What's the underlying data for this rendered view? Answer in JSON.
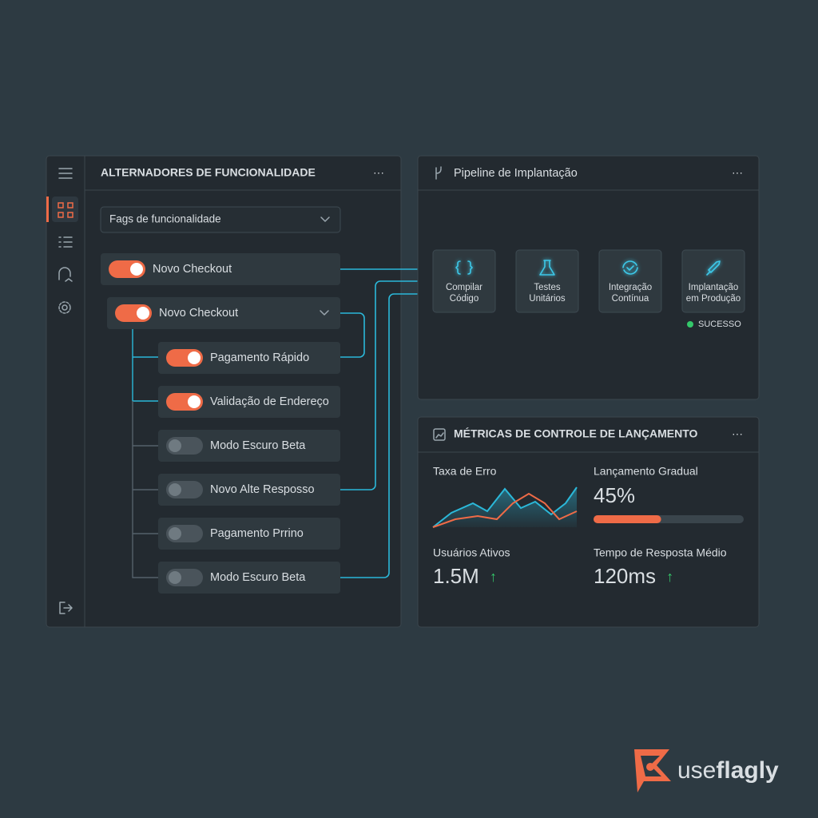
{
  "toggles": {
    "title": "ALTERNADORES DE FUNCIONALIDADE",
    "dropdown": "Fags de funcionalidade",
    "items": [
      {
        "label": "Novo Checkout",
        "on": true
      }
    ],
    "group": {
      "label": "Novo Checkout",
      "on": true,
      "children": [
        {
          "label": "Pagamento Rápido",
          "on": true
        },
        {
          "label": "Validação de Endereço",
          "on": true
        },
        {
          "label": "Modo Escuro Beta",
          "on": false
        },
        {
          "label": "Novo Alte Resposso",
          "on": false
        },
        {
          "label": "Pagamento Prrino",
          "on": false
        },
        {
          "label": "Modo Escuro Beta",
          "on": false
        }
      ]
    }
  },
  "pipeline": {
    "title": "Pipeline de Implantação",
    "steps": [
      {
        "icon": "{ }",
        "lines": [
          "Compilar",
          "Código"
        ]
      },
      {
        "lines": [
          "Testes",
          "Unitários"
        ]
      },
      {
        "lines": [
          "Integração",
          "Contínua"
        ]
      },
      {
        "lines": [
          "Implantação",
          "em Produção"
        ]
      }
    ],
    "status": "SUCESSO"
  },
  "metrics": {
    "title": "MÉTRICAS DE CONTROLE DE LANÇAMENTO",
    "error_rate": {
      "label": "Taxa de Erro"
    },
    "rollout": {
      "label": "Lançamento Gradual",
      "value": {
        "value": 45,
        "label": "45%"
      }
    },
    "active_users": {
      "label": "Usuários Ativos",
      "value": "1.5M",
      "trend": "↑"
    },
    "response_time": {
      "label": "Tempo de Resposta Médio",
      "value": "120ms",
      "trend": "↑"
    }
  },
  "brand": {
    "light": "use",
    "bold": "flagly"
  }
}
